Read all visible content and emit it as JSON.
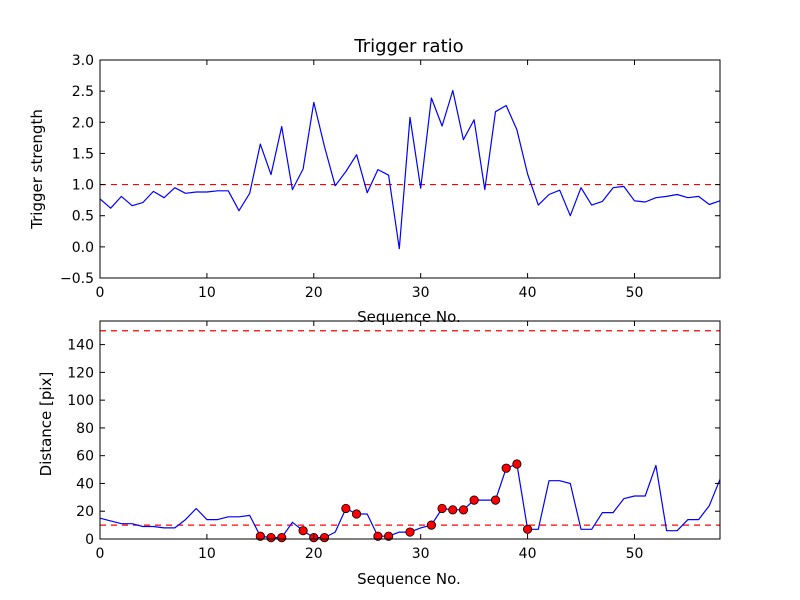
{
  "chart_data": [
    {
      "type": "line",
      "title": "Trigger ratio",
      "xlabel": "Sequence No.",
      "ylabel": "Trigger strength",
      "xlim": [
        0,
        58
      ],
      "ylim": [
        -0.5,
        3.0
      ],
      "xticks": [
        0,
        10,
        20,
        30,
        40,
        50
      ],
      "yticks": [
        -0.5,
        0.0,
        0.5,
        1.0,
        1.5,
        2.0,
        2.5,
        3.0
      ],
      "xtick_labels": [
        "0",
        "10",
        "20",
        "30",
        "40",
        "50"
      ],
      "ytick_labels": [
        "−0.5",
        "0.0",
        "0.5",
        "1.0",
        "1.5",
        "2.0",
        "2.5",
        "3.0"
      ],
      "line_color": "#0000ff",
      "series": [
        {
          "name": "trigger strength",
          "x": [
            0,
            1,
            2,
            3,
            4,
            5,
            6,
            7,
            8,
            9,
            10,
            11,
            12,
            13,
            14,
            15,
            16,
            17,
            18,
            19,
            20,
            21,
            22,
            23,
            24,
            25,
            26,
            27,
            28,
            29,
            30,
            31,
            32,
            33,
            34,
            35,
            36,
            37,
            38,
            39,
            40,
            41,
            42,
            43,
            44,
            45,
            46,
            47,
            48,
            49,
            50,
            51,
            52,
            53,
            54,
            55,
            56,
            57,
            58
          ],
          "values": [
            0.77,
            0.62,
            0.81,
            0.66,
            0.71,
            0.89,
            0.79,
            0.95,
            0.86,
            0.88,
            0.88,
            0.9,
            0.9,
            0.58,
            0.86,
            1.65,
            1.16,
            1.93,
            0.92,
            1.25,
            2.32,
            1.61,
            0.98,
            1.21,
            1.48,
            0.87,
            1.24,
            1.15,
            -0.03,
            2.08,
            0.94,
            2.39,
            1.94,
            2.51,
            1.72,
            2.04,
            0.92,
            2.17,
            2.27,
            1.88,
            1.17,
            0.67,
            0.84,
            0.91,
            0.5,
            0.95,
            0.67,
            0.73,
            0.95,
            0.97,
            0.74,
            0.72,
            0.79,
            0.81,
            0.84,
            0.79,
            0.81,
            0.68,
            0.74
          ]
        }
      ],
      "reference_lines": [
        {
          "y": 1.0,
          "color": "#ff0000",
          "style": "dashed"
        }
      ]
    },
    {
      "type": "line",
      "title": "",
      "xlabel": "Sequence No.",
      "ylabel": "Distance [pix]",
      "xlim": [
        0,
        58
      ],
      "ylim": [
        0,
        157
      ],
      "xticks": [
        0,
        10,
        20,
        30,
        40,
        50
      ],
      "yticks": [
        0,
        20,
        40,
        60,
        80,
        100,
        120,
        140
      ],
      "xtick_labels": [
        "0",
        "10",
        "20",
        "30",
        "40",
        "50"
      ],
      "ytick_labels": [
        "0",
        "20",
        "40",
        "60",
        "80",
        "100",
        "120",
        "140"
      ],
      "line_color": "#0000ff",
      "marker_color": "#ff0000",
      "series": [
        {
          "name": "distance",
          "x": [
            0,
            1,
            2,
            3,
            4,
            5,
            6,
            7,
            8,
            9,
            10,
            11,
            12,
            13,
            14,
            15,
            16,
            17,
            18,
            19,
            20,
            21,
            22,
            23,
            24,
            25,
            26,
            27,
            28,
            29,
            30,
            31,
            32,
            33,
            34,
            35,
            36,
            37,
            38,
            39,
            40,
            41,
            42,
            43,
            44,
            45,
            46,
            47,
            48,
            49,
            50,
            51,
            52,
            53,
            54,
            55,
            56,
            57,
            58
          ],
          "values": [
            15,
            13,
            11,
            11,
            9,
            9,
            8,
            8,
            14,
            22,
            14,
            14,
            16,
            16,
            17,
            2,
            1,
            1,
            12,
            6,
            1,
            1,
            5,
            22,
            18,
            18,
            2,
            2,
            5,
            5,
            8,
            10,
            22,
            21,
            21,
            28,
            28,
            28,
            51,
            54,
            7,
            7,
            42,
            42,
            40,
            7,
            7,
            19,
            19,
            29,
            31,
            31,
            53,
            6,
            6,
            14,
            14,
            24,
            43
          ]
        },
        {
          "name": "flagged points",
          "x": [
            15,
            16,
            17,
            19,
            20,
            21,
            23,
            24,
            26,
            27,
            29,
            31,
            32,
            33,
            34,
            35,
            37,
            38,
            39,
            40
          ],
          "values": [
            2,
            1,
            1,
            6,
            1,
            1,
            22,
            18,
            2,
            2,
            5,
            10,
            22,
            21,
            21,
            28,
            28,
            51,
            54,
            7
          ]
        }
      ],
      "reference_lines": [
        {
          "y": 150,
          "color": "#ff0000",
          "style": "dashed"
        },
        {
          "y": 10,
          "color": "#ff0000",
          "style": "dashed"
        }
      ]
    }
  ]
}
